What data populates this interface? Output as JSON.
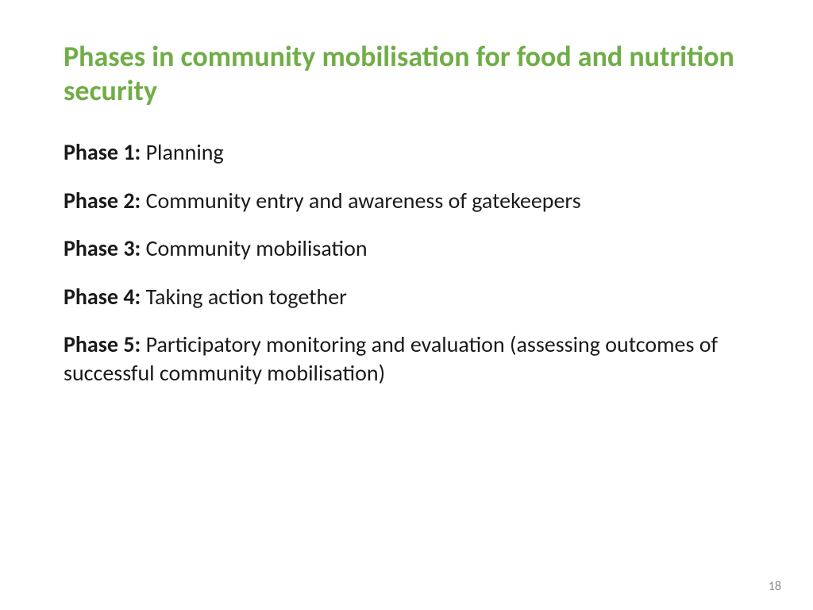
{
  "title": "Phases in community mobilisation for food and nutrition security",
  "phases": [
    {
      "label": "Phase 1:",
      "description": " Planning"
    },
    {
      "label": "Phase 2:",
      "description": " Community entry and awareness of gatekeepers"
    },
    {
      "label": "Phase 3:",
      "description": " Community mobilisation"
    },
    {
      "label": "Phase 4:",
      "description": " Taking action together"
    },
    {
      "label": "Phase 5:",
      "description": " Participatory monitoring and evaluation (assessing outcomes of successful community mobilisation)"
    }
  ],
  "page_number": "18",
  "colors": {
    "title_color": "#70ad47",
    "body_color": "#1a1a1a",
    "page_number_color": "#888888",
    "background": "#ffffff"
  },
  "typography": {
    "title_fontsize": 36,
    "body_fontsize": 28,
    "page_number_fontsize": 16,
    "font_family": "Calibri"
  }
}
